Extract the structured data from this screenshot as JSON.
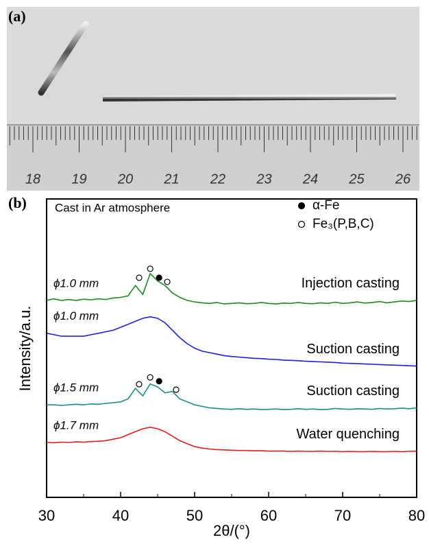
{
  "photo": {
    "label": "(a)",
    "ruler_labels": [
      "18",
      "19",
      "20",
      "21",
      "22",
      "23",
      "24",
      "25",
      "26"
    ]
  },
  "chart_data": {
    "type": "line",
    "panel_label": "(b)",
    "annotation": "Cast in Ar atmosphere",
    "legend": [
      {
        "label": "α-Fe",
        "filled": true
      },
      {
        "label": "Fe₃(P,B,C)",
        "filled": false
      }
    ],
    "xlabel": "2θ/(°)",
    "ylabel": "Intensity/a.u.",
    "xlim": [
      30,
      80
    ],
    "ylim": [
      0,
      100
    ],
    "xticks": [
      30,
      40,
      50,
      60,
      70,
      80
    ],
    "x": [
      30,
      31,
      32,
      33,
      34,
      35,
      36,
      37,
      38,
      39,
      40,
      41,
      42,
      43,
      44,
      45,
      46,
      47,
      48,
      49,
      50,
      51,
      52,
      53,
      54,
      55,
      56,
      57,
      58,
      59,
      60,
      61,
      62,
      63,
      64,
      65,
      66,
      67,
      68,
      69,
      70,
      71,
      72,
      73,
      74,
      75,
      76,
      77,
      78,
      79,
      80
    ],
    "series": [
      {
        "name": "Injection casting",
        "size_label": "ϕ1.0 mm",
        "color": "#1a8a1a",
        "values": [
          66,
          66.5,
          66,
          66.3,
          66,
          66.4,
          66.2,
          66.5,
          66.3,
          66.8,
          67,
          67.5,
          71,
          68,
          75,
          72.5,
          71,
          68.5,
          67,
          66,
          65.5,
          65.2,
          65,
          65.3,
          64.8,
          65,
          65.2,
          64.9,
          65,
          65.3,
          65,
          64.8,
          65.1,
          65,
          65.3,
          65,
          64.9,
          65.2,
          65,
          65.4,
          65,
          65.2,
          65.5,
          65.1,
          65.3,
          65.6,
          65.2,
          65.5,
          65.8,
          65.6,
          66
        ]
      },
      {
        "name": "Suction casting",
        "size_label": "ϕ1.0 mm",
        "color": "#1c1cf0",
        "values": [
          55,
          54.5,
          54,
          54,
          54,
          54,
          54.5,
          55,
          55.5,
          56,
          57,
          58,
          59,
          60,
          60.5,
          60,
          58.5,
          56,
          53.5,
          51.5,
          50,
          49,
          48.5,
          48,
          47.5,
          47.2,
          47,
          46.8,
          46.6,
          46.5,
          46.3,
          46.2,
          46,
          45.9,
          45.8,
          45.6,
          45.5,
          45.4,
          45.3,
          45.2,
          45,
          44.9,
          44.8,
          44.7,
          44.6,
          44.5,
          44.4,
          44.3,
          44.2,
          44.1,
          44
        ]
      },
      {
        "name": "Suction casting",
        "size_label": "ϕ1.5 mm",
        "color": "#1a8c8c",
        "values": [
          31,
          31,
          30.8,
          31,
          31.2,
          31,
          31.3,
          31.2,
          31.5,
          31.7,
          32,
          33,
          36.5,
          34,
          38,
          37,
          35,
          35.5,
          33,
          32,
          31,
          30.5,
          30,
          29.8,
          29.6,
          29.5,
          29.7,
          29.5,
          29.6,
          29.4,
          29.5,
          29.6,
          29.4,
          29.5,
          29.7,
          29.5,
          29.6,
          29.4,
          29.5,
          29.8,
          29.6,
          29.5,
          29.7,
          29.6,
          29.5,
          29.8,
          29.6,
          29.7,
          29.9,
          29.7,
          30
        ]
      },
      {
        "name": "Water quenching",
        "size_label": "ϕ1.7 mm",
        "color": "#e61a1a",
        "values": [
          18.4,
          18.3,
          18.5,
          18.4,
          18.6,
          18.5,
          18.7,
          18.8,
          19,
          19.5,
          20,
          21,
          22,
          23,
          23.5,
          23,
          22,
          20.5,
          19,
          18,
          17,
          16.5,
          16.2,
          16,
          15.9,
          15.8,
          15.7,
          15.7,
          15.6,
          15.6,
          15.5,
          15.5,
          15.5,
          15.4,
          15.5,
          15.4,
          15.4,
          15.5,
          15.4,
          15.4,
          15.3,
          15.4,
          15.3,
          15.3,
          15.4,
          15.3,
          15.3,
          15.4,
          15.3,
          15.4,
          15.5
        ]
      }
    ],
    "phase_markers": [
      {
        "x": 42.5,
        "y": 73.6,
        "filled": false
      },
      {
        "x": 44,
        "y": 76.6,
        "filled": false
      },
      {
        "x": 45.2,
        "y": 73.6,
        "filled": true
      },
      {
        "x": 46.3,
        "y": 72.2,
        "filled": false
      },
      {
        "x": 42.5,
        "y": 37.9,
        "filled": false
      },
      {
        "x": 44,
        "y": 40.2,
        "filled": false
      },
      {
        "x": 45.2,
        "y": 38.9,
        "filled": true
      },
      {
        "x": 47.5,
        "y": 36.1,
        "filled": false
      }
    ]
  }
}
